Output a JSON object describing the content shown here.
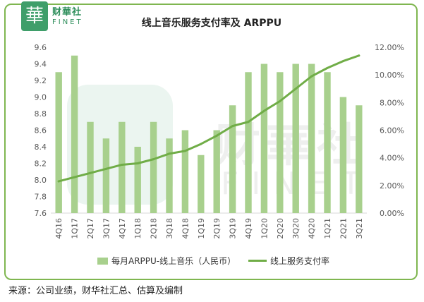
{
  "brand": {
    "seal_char": "華",
    "name_cn": "财華社",
    "name_en": "FINET"
  },
  "chart_data": {
    "type": "bar",
    "title": "线上音乐服务支付率及 ARPPU",
    "categories": [
      "4Q16",
      "1Q17",
      "2Q17",
      "3Q17",
      "4Q17",
      "1Q18",
      "2Q18",
      "3Q18",
      "4Q18",
      "1Q19",
      "2Q19",
      "3Q19",
      "4Q19",
      "1Q20",
      "2Q20",
      "3Q20",
      "4Q20",
      "1Q21",
      "2Q21",
      "3Q21"
    ],
    "series": [
      {
        "name": "每月ARPPU-线上音乐（人民币）",
        "type": "bar",
        "axis": "left",
        "values": [
          9.3,
          9.5,
          8.7,
          8.5,
          8.7,
          8.4,
          8.7,
          8.5,
          8.6,
          8.3,
          8.6,
          8.9,
          9.3,
          9.4,
          9.3,
          9.4,
          9.4,
          9.3,
          9.0,
          8.9
        ]
      },
      {
        "name": "线上服务支付率",
        "type": "line",
        "axis": "right",
        "values": [
          2.3,
          2.6,
          2.9,
          3.2,
          3.5,
          3.6,
          3.9,
          4.3,
          4.5,
          5.0,
          5.6,
          6.3,
          6.6,
          7.4,
          8.1,
          9.0,
          9.9,
          10.5,
          11.0,
          11.4
        ]
      }
    ],
    "y_left": {
      "ylim": [
        7.6,
        9.6
      ],
      "ticks": [
        "7.6",
        "7.8",
        "8.0",
        "8.2",
        "8.4",
        "8.6",
        "8.8",
        "9.0",
        "9.2",
        "9.4",
        "9.6"
      ]
    },
    "y_right": {
      "ylim": [
        0,
        12
      ],
      "ticks": [
        "0.00%",
        "2.00%",
        "4.00%",
        "6.00%",
        "8.00%",
        "10.00%",
        "12.00%"
      ]
    },
    "grid": false,
    "legend_position": "bottom",
    "colors": {
      "bar": "#a8d08d",
      "line": "#70ad47"
    }
  },
  "source_note": "来源：公司业绩，财华社汇总、估算及编制",
  "colors": {
    "frame": "#7fb650",
    "brand": "#3f9e6a"
  }
}
